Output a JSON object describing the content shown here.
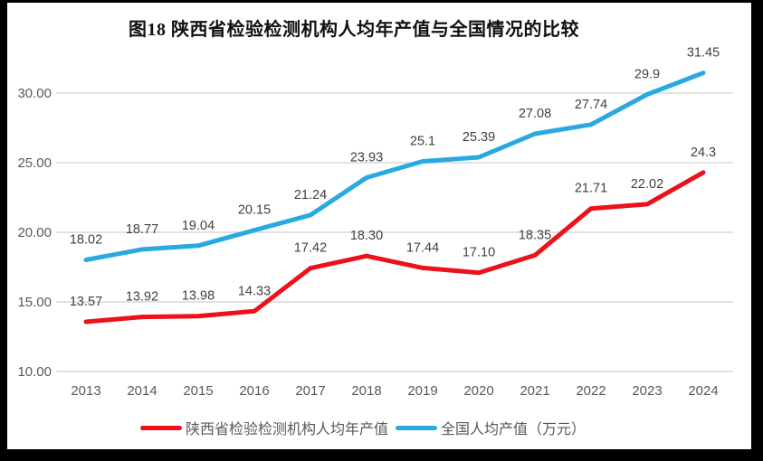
{
  "frame": {
    "border_color": "#000000",
    "background": "#ffffff"
  },
  "chart_data": {
    "type": "line",
    "title": "图18 陕西省检验检测机构人均年产值与全国情况的比较",
    "categories": [
      "2013",
      "2014",
      "2015",
      "2016",
      "2017",
      "2018",
      "2019",
      "2020",
      "2021",
      "2022",
      "2023",
      "2024"
    ],
    "series": [
      {
        "name": "陕西省检验检测机构人均年产值",
        "color": "#ec111a",
        "values": [
          13.57,
          13.92,
          13.98,
          14.33,
          17.42,
          18.3,
          17.44,
          17.1,
          18.35,
          21.71,
          22.02,
          24.3
        ],
        "labels": [
          "13.57",
          "13.92",
          "13.98",
          "14.33",
          "17.42",
          "18.30",
          "17.44",
          "17.10",
          "18.35",
          "21.71",
          "22.02",
          "24.3"
        ]
      },
      {
        "name": "全国人均产值（万元）",
        "color": "#29a9e1",
        "values": [
          18.02,
          18.77,
          19.04,
          20.15,
          21.24,
          23.93,
          25.1,
          25.39,
          27.08,
          27.74,
          29.9,
          31.45
        ],
        "labels": [
          "18.02",
          "18.77",
          "19.04",
          "20.15",
          "21.24",
          "23.93",
          "25.1",
          "25.39",
          "27.08",
          "27.74",
          "29.9",
          "31.45"
        ]
      }
    ],
    "y_ticks": [
      {
        "label": "30.00",
        "value": 30
      },
      {
        "label": "25.00",
        "value": 25
      },
      {
        "label": "20.00",
        "value": 20
      },
      {
        "label": "15.00",
        "value": 15
      },
      {
        "label": "10.00",
        "value": 10
      }
    ],
    "ylim": [
      10,
      32.5
    ],
    "xlabel": "",
    "ylabel": "",
    "grid": true,
    "legend_position": "bottom",
    "style": {
      "grid_color": "#d9d9d9",
      "tick_label_color": "#595959",
      "data_label_color": "#404040",
      "title_color": "#111111",
      "line_width": 5
    }
  }
}
